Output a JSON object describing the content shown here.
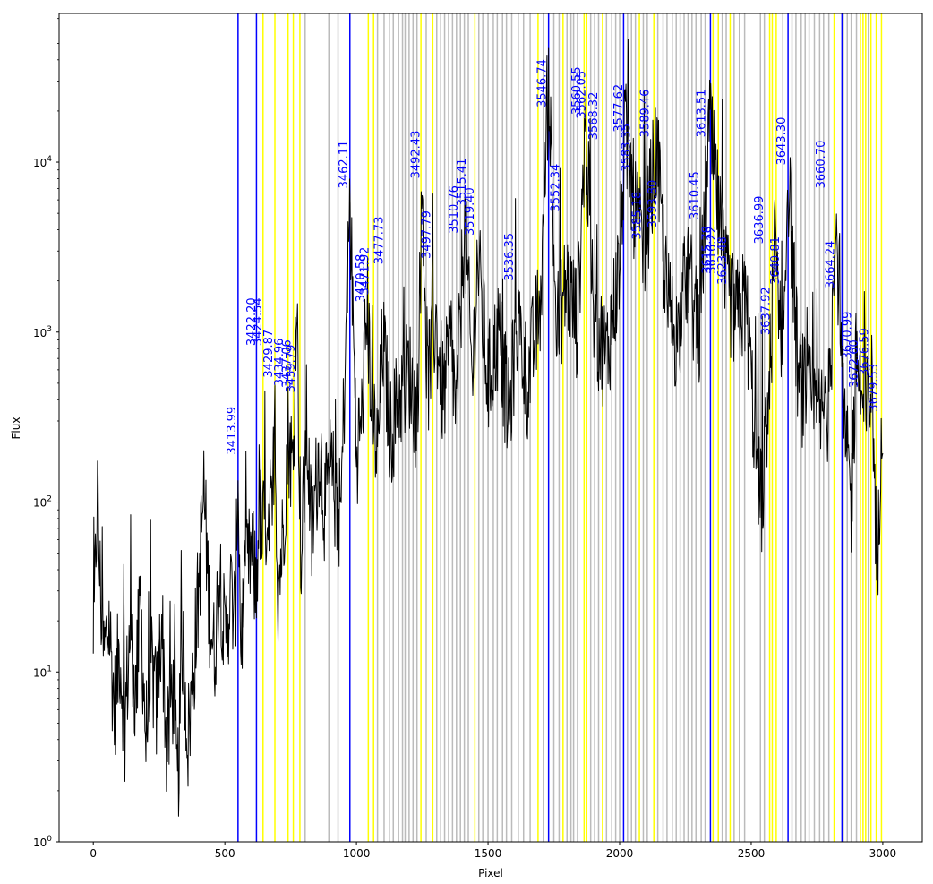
{
  "chart_data": {
    "type": "line",
    "title": "",
    "xlabel": "Pixel",
    "ylabel": "Flux",
    "xlim": [
      -130,
      3150
    ],
    "ylim": [
      1,
      75000
    ],
    "yscale": "log",
    "x_ticks": [
      0,
      500,
      1000,
      1500,
      2000,
      2500,
      3000
    ],
    "x_tick_labels": [
      "0",
      "500",
      "1000",
      "1500",
      "2000",
      "2500",
      "3000"
    ],
    "y_ticks": [
      1,
      10,
      100,
      1000,
      10000
    ],
    "y_tick_labels": [
      "10^0",
      "10^1",
      "10^2",
      "10^3",
      "10^4"
    ],
    "grid": false,
    "colors": {
      "spectrum": "#000000",
      "identified_line": "#0000ff",
      "candidate_line": "#ffff00",
      "unused_line": "#bbbbbb",
      "label": "#0000ff"
    },
    "spectrum_anchors": [
      [
        0,
        10
      ],
      [
        15,
        125
      ],
      [
        25,
        35
      ],
      [
        40,
        12
      ],
      [
        60,
        20
      ],
      [
        80,
        6
      ],
      [
        100,
        14
      ],
      [
        120,
        5
      ],
      [
        140,
        18
      ],
      [
        160,
        7
      ],
      [
        180,
        25
      ],
      [
        200,
        4
      ],
      [
        220,
        12
      ],
      [
        240,
        6
      ],
      [
        260,
        22
      ],
      [
        280,
        3
      ],
      [
        300,
        9
      ],
      [
        320,
        2
      ],
      [
        340,
        15
      ],
      [
        360,
        4
      ],
      [
        380,
        10
      ],
      [
        400,
        30
      ],
      [
        420,
        120
      ],
      [
        440,
        25
      ],
      [
        460,
        12
      ],
      [
        480,
        45
      ],
      [
        500,
        14
      ],
      [
        520,
        30
      ],
      [
        540,
        20
      ],
      [
        550,
        170
      ],
      [
        560,
        15
      ],
      [
        580,
        35
      ],
      [
        600,
        50
      ],
      [
        620,
        30
      ],
      [
        630,
        110
      ],
      [
        640,
        60
      ],
      [
        660,
        90
      ],
      [
        680,
        70
      ],
      [
        690,
        450
      ],
      [
        700,
        30
      ],
      [
        720,
        60
      ],
      [
        740,
        250
      ],
      [
        760,
        150
      ],
      [
        772,
        2000
      ],
      [
        790,
        40
      ],
      [
        810,
        300
      ],
      [
        830,
        60
      ],
      [
        860,
        220
      ],
      [
        880,
        90
      ],
      [
        900,
        150
      ],
      [
        940,
        80
      ],
      [
        975,
        6000
      ],
      [
        1000,
        200
      ],
      [
        1020,
        300
      ],
      [
        1040,
        1500
      ],
      [
        1060,
        350
      ],
      [
        1080,
        180
      ],
      [
        1100,
        900
      ],
      [
        1130,
        250
      ],
      [
        1160,
        400
      ],
      [
        1200,
        600
      ],
      [
        1230,
        300
      ],
      [
        1250,
        7000
      ],
      [
        1270,
        500
      ],
      [
        1300,
        1200
      ],
      [
        1330,
        400
      ],
      [
        1360,
        900
      ],
      [
        1380,
        300
      ],
      [
        1410,
        5000
      ],
      [
        1440,
        500
      ],
      [
        1460,
        2800
      ],
      [
        1500,
        500
      ],
      [
        1540,
        1000
      ],
      [
        1580,
        300
      ],
      [
        1610,
        1200
      ],
      [
        1650,
        500
      ],
      [
        1700,
        1500
      ],
      [
        1730,
        33000
      ],
      [
        1760,
        1000
      ],
      [
        1800,
        2000
      ],
      [
        1840,
        1100
      ],
      [
        1870,
        18000
      ],
      [
        1900,
        1200
      ],
      [
        1950,
        700
      ],
      [
        2000,
        2500
      ],
      [
        2020,
        15000
      ],
      [
        2060,
        5000
      ],
      [
        2090,
        3000
      ],
      [
        2140,
        12000
      ],
      [
        2180,
        1500
      ],
      [
        2220,
        900
      ],
      [
        2260,
        2500
      ],
      [
        2300,
        800
      ],
      [
        2340,
        17000
      ],
      [
        2370,
        6000
      ],
      [
        2400,
        2000
      ],
      [
        2440,
        1200
      ],
      [
        2480,
        1500
      ],
      [
        2510,
        300
      ],
      [
        2540,
        100
      ],
      [
        2570,
        500
      ],
      [
        2590,
        3500
      ],
      [
        2620,
        800
      ],
      [
        2640,
        9000
      ],
      [
        2680,
        500
      ],
      [
        2720,
        400
      ],
      [
        2760,
        300
      ],
      [
        2800,
        400
      ],
      [
        2820,
        6500
      ],
      [
        2850,
        300
      ],
      [
        2880,
        100
      ],
      [
        2900,
        800
      ],
      [
        2930,
        300
      ],
      [
        2960,
        500
      ],
      [
        2980,
        30
      ],
      [
        2995,
        400
      ]
    ],
    "identified_lines": [
      {
        "x": 550,
        "label": "3413.99"
      },
      {
        "x": 625,
        "label": "3422.20"
      },
      {
        "x": 650,
        "label": "3424.54"
      },
      {
        "x": 690,
        "label": "3429.87"
      },
      {
        "x": 730,
        "label": "3434.96"
      },
      {
        "x": 760,
        "label": "3437.06"
      },
      {
        "x": 775,
        "label": "3439.79"
      },
      {
        "x": 975,
        "label": "3462.11"
      },
      {
        "x": 1040,
        "label": "3470.58"
      },
      {
        "x": 1055,
        "label": "3471.92"
      },
      {
        "x": 1110,
        "label": "3477.73"
      },
      {
        "x": 1250,
        "label": "3492.43"
      },
      {
        "x": 1290,
        "label": "3497.79"
      },
      {
        "x": 1395,
        "label": "3510.76"
      },
      {
        "x": 1425,
        "label": "3515.41"
      },
      {
        "x": 1455,
        "label": "3519.40"
      },
      {
        "x": 1605,
        "label": "3536.35"
      },
      {
        "x": 1730,
        "label": "3546.74"
      },
      {
        "x": 1780,
        "label": "3552.34"
      },
      {
        "x": 1860,
        "label": "3560.55"
      },
      {
        "x": 1880,
        "label": "3562.05"
      },
      {
        "x": 1925,
        "label": "3568.32"
      },
      {
        "x": 2020,
        "label": "3577.62"
      },
      {
        "x": 2050,
        "label": "3583.35"
      },
      {
        "x": 2090,
        "label": "3585.18"
      },
      {
        "x": 2120,
        "label": "3589.46"
      },
      {
        "x": 2150,
        "label": "3593.80"
      },
      {
        "x": 2310,
        "label": "3610.45"
      },
      {
        "x": 2335,
        "label": "3613.51"
      },
      {
        "x": 2355,
        "label": "3615.78"
      },
      {
        "x": 2375,
        "label": "3616.22"
      },
      {
        "x": 2415,
        "label": "3623.48"
      },
      {
        "x": 2555,
        "label": "3636.99"
      },
      {
        "x": 2580,
        "label": "3637.92"
      },
      {
        "x": 2615,
        "label": "3640.81"
      },
      {
        "x": 2640,
        "label": "3643.30"
      },
      {
        "x": 2790,
        "label": "3660.70"
      },
      {
        "x": 2825,
        "label": "3664.24"
      },
      {
        "x": 2890,
        "label": "3670.99"
      },
      {
        "x": 2915,
        "label": "3672.60"
      },
      {
        "x": 2955,
        "label": "3676.59"
      },
      {
        "x": 2990,
        "label": "3679.53"
      }
    ],
    "label_y": [
      190,
      830,
      830,
      540,
      480,
      470,
      440,
      7000,
      1500,
      1650,
      2500,
      8000,
      2700,
      3800,
      5500,
      3700,
      2000,
      21000,
      5100,
      19000,
      18000,
      13500,
      15000,
      8800,
      3500,
      14000,
      4100,
      4600,
      14000,
      2200,
      2200,
      1900,
      3300,
      960,
      1900,
      9600,
      7000,
      1800,
      690,
      470,
      550,
      340
    ],
    "blue_lines": [
      550,
      620,
      975,
      1730,
      2015,
      2345,
      2640,
      2845
    ],
    "yellow_lines": [
      645,
      690,
      740,
      760,
      785,
      1045,
      1065,
      1245,
      1290,
      1450,
      1690,
      1785,
      1865,
      1875,
      1935,
      2075,
      2130,
      2355,
      2375,
      2420,
      2570,
      2580,
      2595,
      2815,
      2915,
      2925,
      2935,
      2955,
      2975,
      2995
    ],
    "gray_lines": [
      805,
      895,
      930,
      1080,
      1105,
      1125,
      1140,
      1160,
      1175,
      1185,
      1200,
      1215,
      1230,
      1265,
      1305,
      1320,
      1335,
      1350,
      1365,
      1380,
      1395,
      1410,
      1425,
      1465,
      1480,
      1500,
      1520,
      1535,
      1555,
      1570,
      1590,
      1615,
      1635,
      1660,
      1710,
      1750,
      1770,
      1800,
      1815,
      1825,
      1840,
      1890,
      1905,
      1920,
      1950,
      1970,
      1985,
      2000,
      2030,
      2045,
      2060,
      2090,
      2105,
      2145,
      2165,
      2180,
      2200,
      2215,
      2230,
      2245,
      2260,
      2275,
      2290,
      2310,
      2325,
      2390,
      2405,
      2435,
      2455,
      2475,
      2535,
      2550,
      2620,
      2655,
      2670,
      2690,
      2705,
      2720,
      2740,
      2760,
      2775,
      2795,
      2850,
      2865,
      2880,
      2900,
      2945
    ]
  }
}
